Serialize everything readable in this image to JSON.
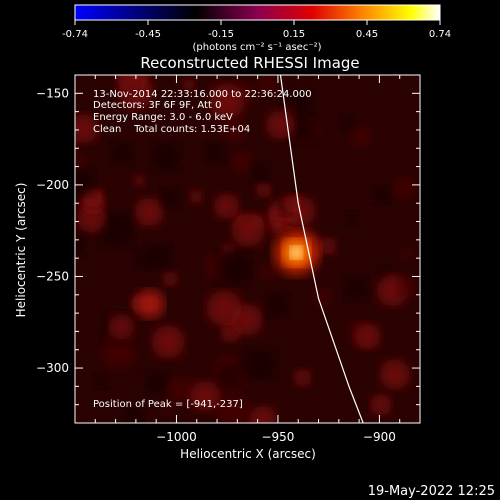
{
  "chart_data": {
    "type": "heatmap",
    "title": "Reconstructed RHESSI Image",
    "xlabel": "Heliocentric X (arcsec)",
    "ylabel": "Heliocentric Y (arcsec)",
    "xlim": [
      -1050,
      -880
    ],
    "ylim": [
      -330,
      -140
    ],
    "xticks": [
      -1000,
      -950,
      -900
    ],
    "yticks": [
      -150,
      -200,
      -250,
      -300
    ],
    "colorbar": {
      "range": [
        -0.74,
        0.74
      ],
      "ticks": [
        "-0.74",
        "-0.45",
        "-0.15",
        "0.15",
        "0.45",
        "0.74"
      ],
      "units": "(photons cm⁻² s⁻¹ asec⁻²)",
      "colormap": [
        "#0000ff",
        "#000000",
        "#8b008b",
        "#ff0000",
        "#ffa500",
        "#ffff00",
        "#ffffff"
      ]
    },
    "annotations": {
      "time_range": "13-Nov-2014 22:33:16.000 to 22:36:24.000",
      "detectors": "Detectors: 3F 6F 9F, Att 0",
      "energy": "Energy Range: 3.0 - 6.0 keV",
      "method": "Clean    Total counts: 1.53E+04",
      "peak": "Position of Peak = [-941,-237]"
    },
    "peak": {
      "x": -941,
      "y": -237
    },
    "secondary_source": {
      "x": -1013,
      "y": -265
    },
    "limb_curve": [
      [
        -950,
        -130
      ],
      [
        -940,
        -210
      ],
      [
        -930,
        -262
      ],
      [
        -915,
        -310
      ],
      [
        -908,
        -330
      ]
    ]
  },
  "footer": {
    "timestamp": "19-May-2022 12:25"
  }
}
